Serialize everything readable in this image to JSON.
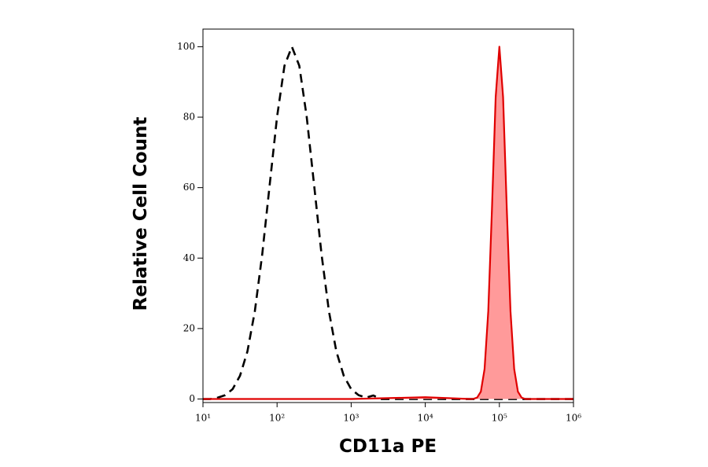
{
  "chart_data": {
    "type": "line",
    "x_label": "CD11a PE",
    "y_label": "Relative Cell Count",
    "xscale": "log",
    "xlim": [
      10,
      1000000
    ],
    "ylim": [
      -1,
      105
    ],
    "xticks": [
      {
        "value": 10,
        "label": "10¹"
      },
      {
        "value": 100,
        "label": "10²"
      },
      {
        "value": 1000,
        "label": "10³"
      },
      {
        "value": 10000,
        "label": "10⁴"
      },
      {
        "value": 100000,
        "label": "10⁵"
      },
      {
        "value": 1000000,
        "label": "10⁶"
      }
    ],
    "yticks": [
      0,
      20,
      40,
      60,
      80,
      100
    ],
    "series": [
      {
        "color": "#000000",
        "dashed": true,
        "filled": false,
        "x": [
          10,
          12.59,
          15.85,
          19.95,
          25.12,
          31.62,
          39.81,
          50.12,
          63.1,
          79.43,
          100,
          125.9,
          158.5,
          199.5,
          251.2,
          316.2,
          398.1,
          501.2,
          631,
          794.3,
          1000,
          1259,
          1585,
          1995,
          2512,
          3162,
          10000,
          100000,
          1000000
        ],
        "values": [
          0,
          0,
          0.4,
          1.1,
          2.8,
          6.6,
          13.5,
          24.9,
          41.1,
          60.7,
          80.1,
          94.6,
          100,
          94.6,
          80.1,
          60.7,
          41.1,
          24.9,
          13.5,
          6.6,
          2.8,
          1.1,
          0.4,
          1.0,
          0,
          0,
          0,
          0,
          0
        ]
      },
      {
        "color": "#e00000",
        "dashed": false,
        "filled": true,
        "fill": "#ff9a9a",
        "x": [
          10,
          1000,
          10000,
          39811,
          44668,
          50119,
          56234,
          63096,
          70795,
          79433,
          89125,
          100000,
          112202,
          125893,
          141254,
          158489,
          177828,
          199526,
          223872,
          1000000
        ],
        "values": [
          0,
          0,
          0.5,
          0,
          0.05,
          0.4,
          2.1,
          8.5,
          24.9,
          54,
          85.7,
          100,
          85.7,
          54,
          24.9,
          8.5,
          2.1,
          0.4,
          0,
          0
        ]
      }
    ]
  }
}
